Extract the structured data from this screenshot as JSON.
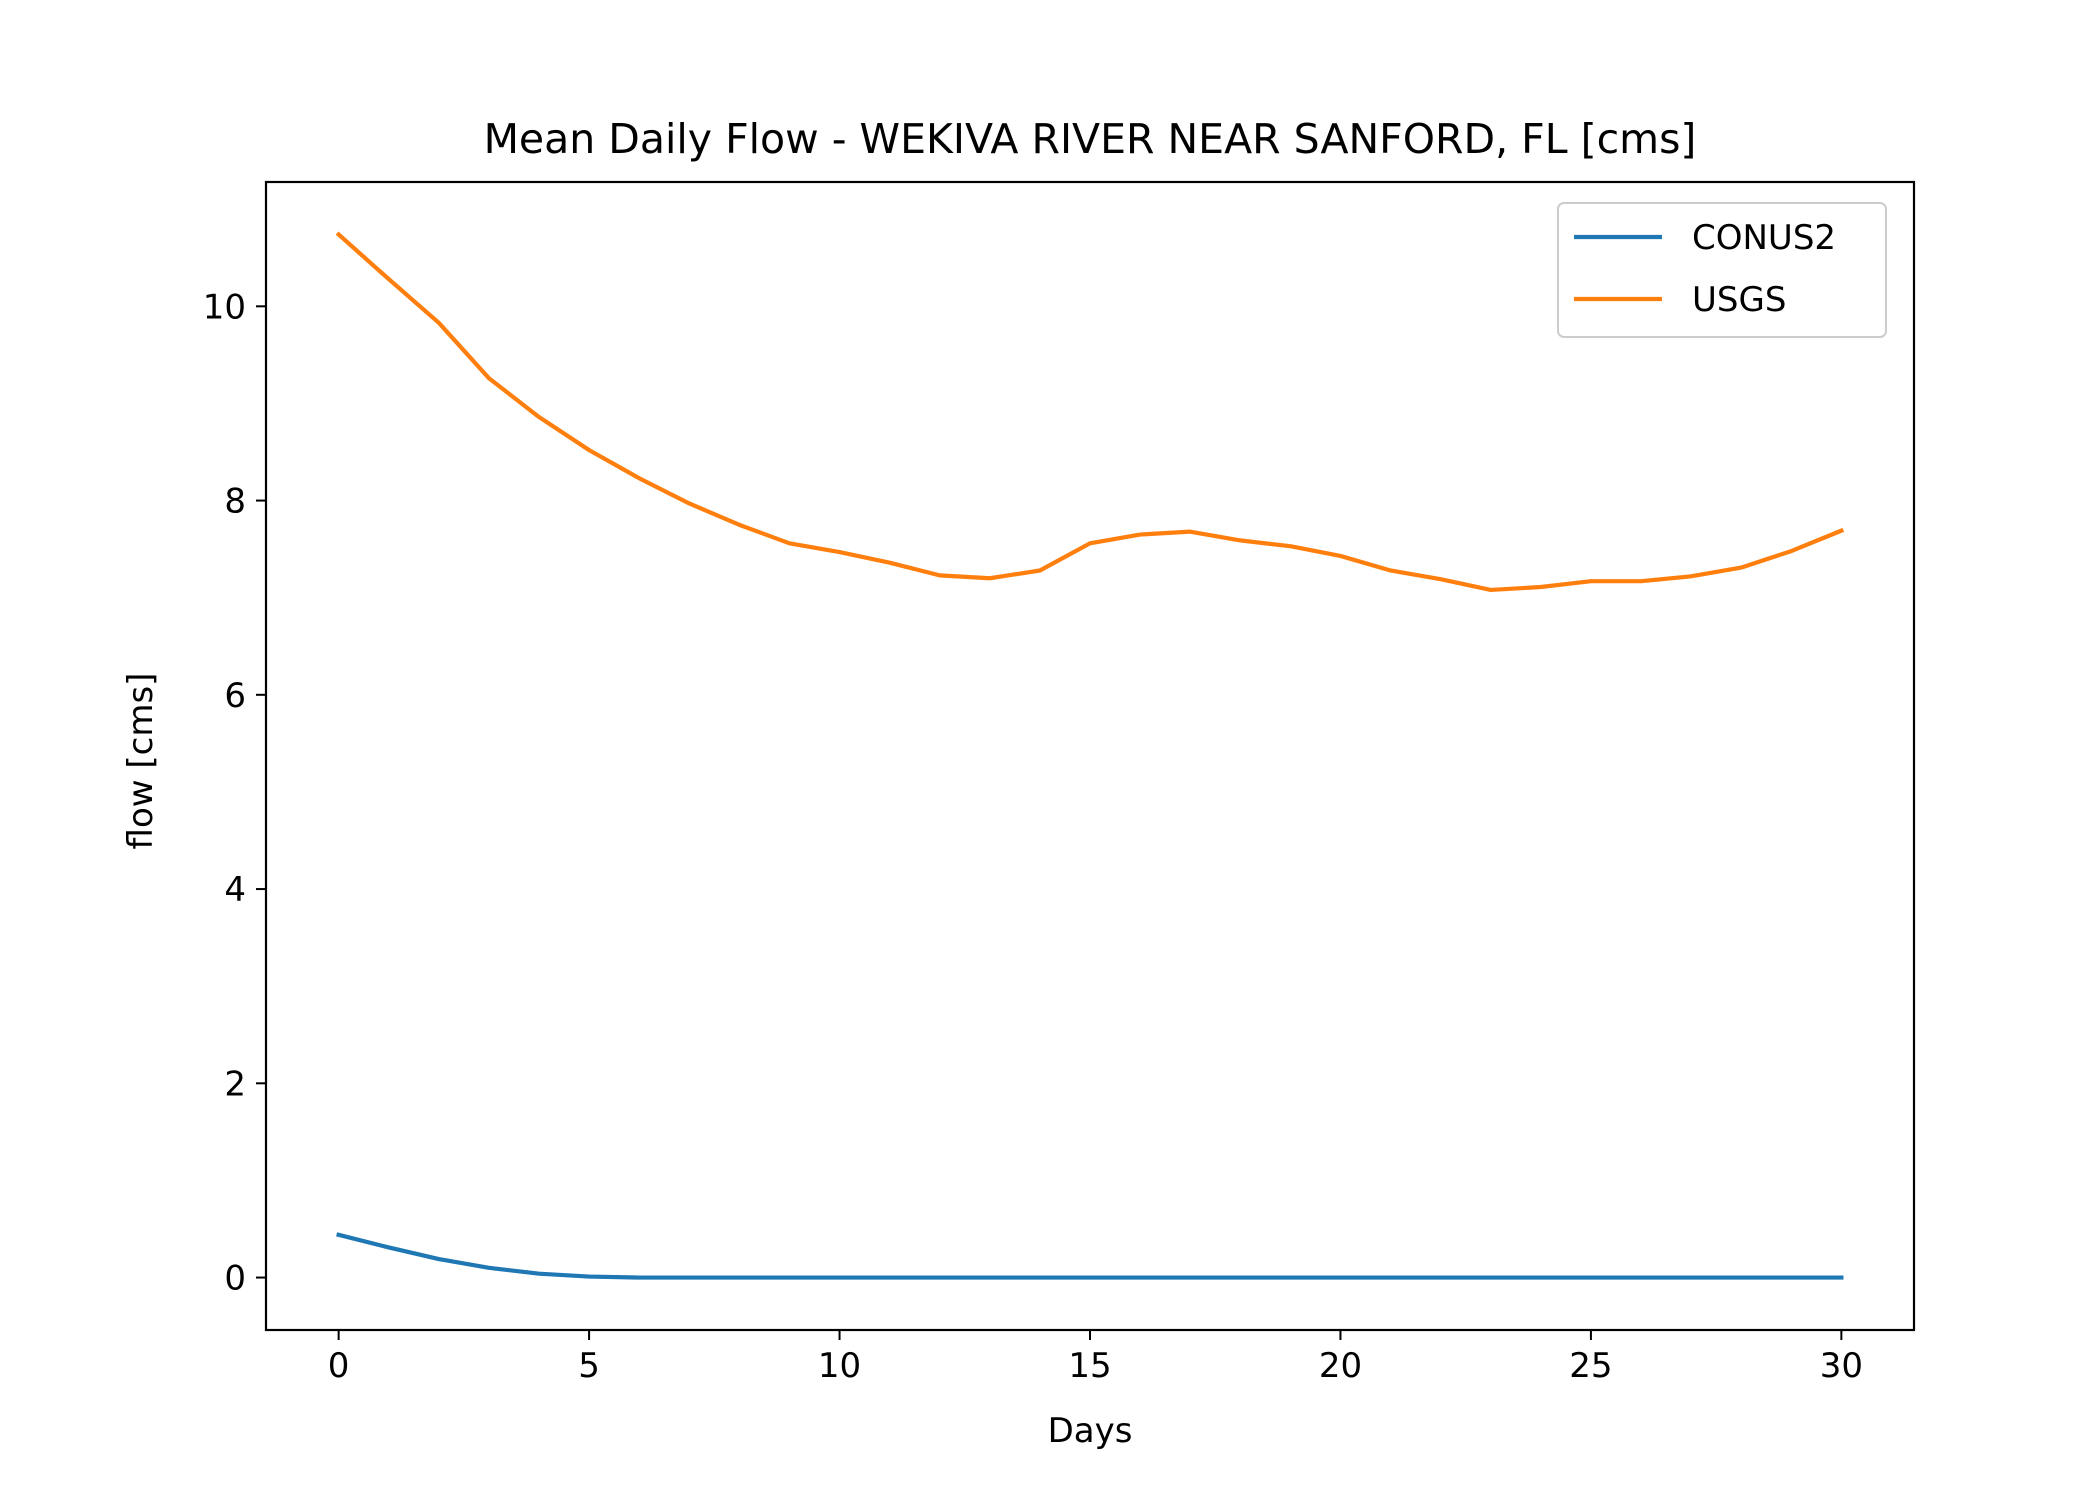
{
  "chart_data": {
    "type": "line",
    "title": "Mean Daily Flow - WEKIVA RIVER NEAR SANFORD, FL [cms]",
    "xlabel": "Days",
    "ylabel": "flow [cms]",
    "xlim": [
      -1.45,
      31.45
    ],
    "ylim": [
      -0.54,
      11.28
    ],
    "xticks": [
      0,
      5,
      10,
      15,
      20,
      25,
      30
    ],
    "yticks": [
      0,
      2,
      4,
      6,
      8,
      10
    ],
    "grid": false,
    "legend_position": "top-right",
    "x": [
      0,
      1,
      2,
      3,
      4,
      5,
      6,
      7,
      8,
      9,
      10,
      11,
      12,
      13,
      14,
      15,
      16,
      17,
      18,
      19,
      20,
      21,
      22,
      23,
      24,
      25,
      26,
      27,
      28,
      29,
      30
    ],
    "series": [
      {
        "name": "CONUS2",
        "color": "#1f77b4",
        "values": [
          0.44,
          0.31,
          0.19,
          0.1,
          0.04,
          0.01,
          0,
          0,
          0,
          0,
          0,
          0,
          0,
          0,
          0,
          0,
          0,
          0,
          0,
          0,
          0,
          0,
          0,
          0,
          0,
          0,
          0,
          0,
          0,
          0,
          0
        ]
      },
      {
        "name": "USGS",
        "color": "#ff7f0e",
        "values": [
          10.74,
          10.28,
          9.83,
          9.26,
          8.86,
          8.52,
          8.23,
          7.97,
          7.75,
          7.56,
          7.47,
          7.36,
          7.23,
          7.2,
          7.28,
          7.56,
          7.65,
          7.68,
          7.59,
          7.53,
          7.43,
          7.28,
          7.19,
          7.08,
          7.11,
          7.17,
          7.17,
          7.22,
          7.31,
          7.48,
          7.69
        ]
      }
    ]
  }
}
